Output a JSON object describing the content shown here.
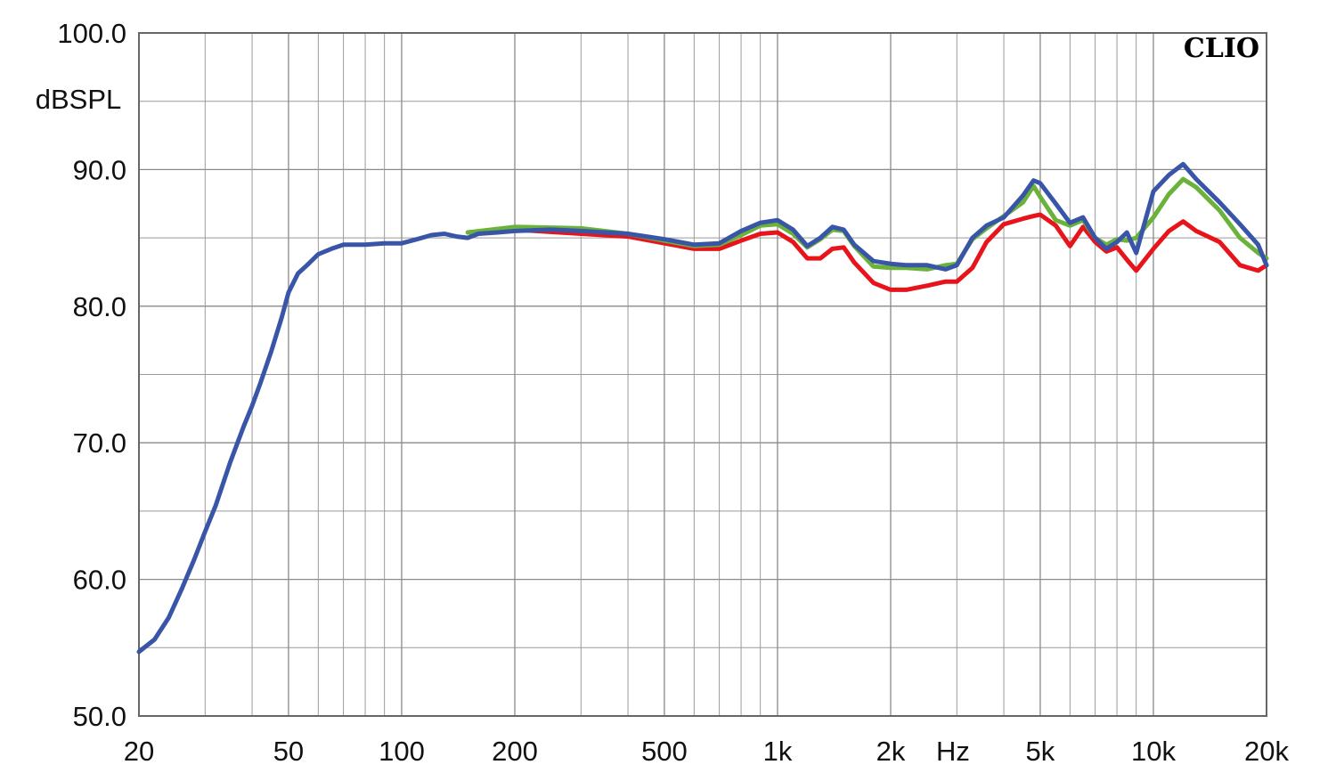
{
  "brand_label": "CLIO",
  "chart_data": {
    "type": "line",
    "ylabel": "dBSPL",
    "xlabel": "Hz",
    "x_scale": "log",
    "xlim": [
      20,
      20000
    ],
    "ylim": [
      50,
      100
    ],
    "grid": true,
    "y_ticks": [
      "50.0",
      "60.0",
      "70.0",
      "80.0",
      "90.0",
      "100.0"
    ],
    "y_tick_values": [
      50,
      60,
      70,
      80,
      90,
      100
    ],
    "x_ticks": [
      {
        "label": "20",
        "value": 20
      },
      {
        "label": "50",
        "value": 50
      },
      {
        "label": "100",
        "value": 100
      },
      {
        "label": "200",
        "value": 200
      },
      {
        "label": "500",
        "value": 500
      },
      {
        "label": "1k",
        "value": 1000
      },
      {
        "label": "2k",
        "value": 2000
      },
      {
        "label": "5k",
        "value": 5000
      },
      {
        "label": "10k",
        "value": 10000
      },
      {
        "label": "20k",
        "value": 20000
      }
    ],
    "series": [
      {
        "color": "#e8141c",
        "x": [
          150,
          200,
          300,
          400,
          500,
          600,
          700,
          800,
          900,
          1000,
          1100,
          1200,
          1300,
          1400,
          1500,
          1600,
          1800,
          2000,
          2200,
          2500,
          2800,
          3000,
          3300,
          3600,
          4000,
          4500,
          4800,
          5000,
          5500,
          6000,
          6500,
          7000,
          7500,
          8000,
          8500,
          9000,
          10000,
          11000,
          12000,
          13000,
          15000,
          17000,
          19000,
          20000
        ],
        "y": [
          85.4,
          85.6,
          85.3,
          85.1,
          84.6,
          84.2,
          84.2,
          84.8,
          85.3,
          85.4,
          84.7,
          83.5,
          83.5,
          84.2,
          84.3,
          83.2,
          81.7,
          81.2,
          81.2,
          81.5,
          81.8,
          81.8,
          82.8,
          84.7,
          86.0,
          86.4,
          86.6,
          86.7,
          85.9,
          84.4,
          85.8,
          84.7,
          84.0,
          84.3,
          83.4,
          82.6,
          84.2,
          85.5,
          86.2,
          85.5,
          84.7,
          83.0,
          82.6,
          83.0
        ]
      },
      {
        "color": "#6ab23a",
        "x": [
          150,
          200,
          300,
          400,
          500,
          600,
          700,
          800,
          900,
          1000,
          1100,
          1200,
          1300,
          1400,
          1500,
          1600,
          1800,
          2000,
          2200,
          2500,
          2800,
          3000,
          3300,
          3600,
          4000,
          4500,
          4800,
          5000,
          5500,
          6000,
          6500,
          7000,
          7500,
          8000,
          8500,
          9000,
          10000,
          11000,
          12000,
          13000,
          15000,
          17000,
          19000,
          20000
        ],
        "y": [
          85.4,
          85.8,
          85.7,
          85.3,
          84.8,
          84.4,
          84.5,
          85.2,
          85.9,
          86.0,
          85.3,
          84.3,
          84.9,
          85.6,
          85.5,
          84.4,
          82.9,
          82.8,
          82.8,
          82.7,
          83.0,
          83.1,
          84.9,
          85.7,
          86.6,
          87.6,
          88.8,
          88.0,
          86.3,
          85.9,
          86.3,
          85.0,
          84.5,
          84.9,
          84.8,
          85.0,
          86.5,
          88.2,
          89.3,
          88.7,
          87.0,
          85.0,
          83.9,
          83.5
        ]
      },
      {
        "color": "#3855a8",
        "x": [
          20,
          22,
          24,
          26,
          28,
          30,
          32,
          35,
          38,
          40,
          42,
          45,
          48,
          50,
          53,
          56,
          60,
          65,
          70,
          75,
          80,
          90,
          100,
          110,
          120,
          130,
          140,
          150,
          160,
          180,
          200,
          250,
          300,
          400,
          500,
          600,
          700,
          800,
          900,
          1000,
          1100,
          1200,
          1300,
          1400,
          1500,
          1600,
          1800,
          2000,
          2200,
          2500,
          2800,
          3000,
          3300,
          3600,
          4000,
          4500,
          4800,
          5000,
          5500,
          6000,
          6500,
          7000,
          7500,
          8000,
          8500,
          9000,
          10000,
          11000,
          12000,
          13000,
          15000,
          17000,
          19000,
          20000
        ],
        "y": [
          54.7,
          55.6,
          57.2,
          59.3,
          61.4,
          63.5,
          65.4,
          68.6,
          71.2,
          72.7,
          74.3,
          76.7,
          79.2,
          81.0,
          82.4,
          83.0,
          83.8,
          84.2,
          84.5,
          84.5,
          84.5,
          84.6,
          84.6,
          84.9,
          85.2,
          85.3,
          85.1,
          85.0,
          85.3,
          85.4,
          85.5,
          85.6,
          85.5,
          85.3,
          84.9,
          84.5,
          84.6,
          85.5,
          86.1,
          86.3,
          85.6,
          84.4,
          85.0,
          85.8,
          85.6,
          84.5,
          83.3,
          83.1,
          83.0,
          83.0,
          82.7,
          83.0,
          85.0,
          85.9,
          86.5,
          88.1,
          89.2,
          89.0,
          87.5,
          86.1,
          86.5,
          85.0,
          84.2,
          84.7,
          85.4,
          83.9,
          88.4,
          89.6,
          90.4,
          89.3,
          87.6,
          86.0,
          84.5,
          83.0
        ]
      }
    ]
  }
}
